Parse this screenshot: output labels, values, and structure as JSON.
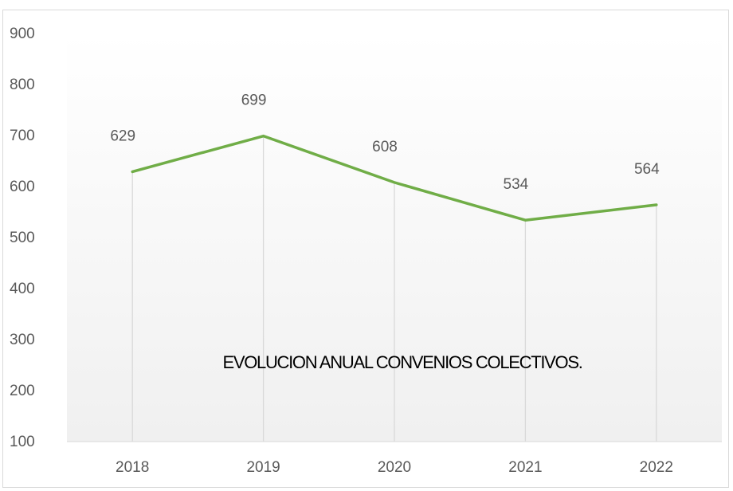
{
  "chart_data": {
    "type": "line",
    "title": "EVOLUCION ANUAL CONVENIOS COLECTIVOS.",
    "categories": [
      "2018",
      "2019",
      "2020",
      "2021",
      "2022"
    ],
    "series": [
      {
        "values": [
          629,
          699,
          608,
          534,
          564
        ]
      }
    ],
    "data_labels": [
      "629",
      "699",
      "608",
      "534",
      "564"
    ],
    "y_ticks": [
      "100",
      "200",
      "300",
      "400",
      "500",
      "600",
      "700",
      "800",
      "900"
    ],
    "ylim": [
      100,
      900
    ],
    "line_color": "#70ad47",
    "drop_lines": true,
    "plot_background": "gradient-white-to-light-gray",
    "grid": false,
    "legend": "none"
  }
}
